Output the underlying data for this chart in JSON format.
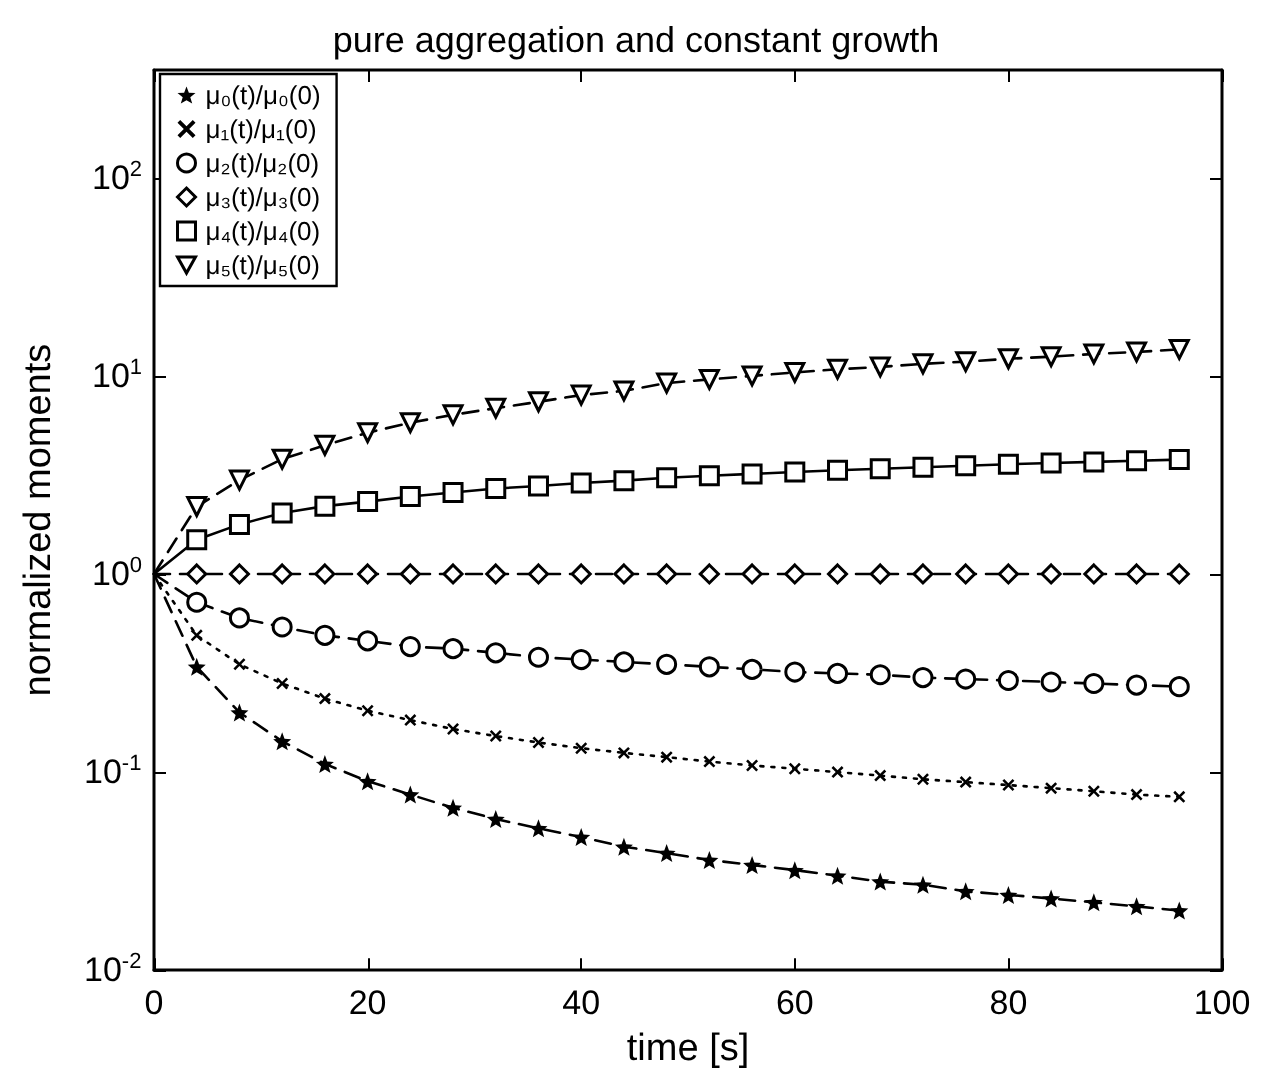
{
  "chart_data": {
    "type": "line",
    "title": "pure aggregation and constant growth",
    "xlabel": "time [s]",
    "ylabel": "normalized moments",
    "x": [
      0,
      4,
      8,
      12,
      16,
      20,
      24,
      28,
      32,
      36,
      40,
      44,
      48,
      52,
      56,
      60,
      64,
      68,
      72,
      76,
      80,
      84,
      88,
      92,
      96
    ],
    "series": [
      {
        "name": "μ₀(t)/μ₀(0)",
        "color": "#000000",
        "marker": "star",
        "line_style": "dashed",
        "values": [
          1,
          0.34,
          0.2,
          0.143,
          0.11,
          0.09,
          0.077,
          0.066,
          0.058,
          0.052,
          0.047,
          0.042,
          0.039,
          0.036,
          0.034,
          0.032,
          0.03,
          0.028,
          0.027,
          0.025,
          0.024,
          0.023,
          0.022,
          0.021,
          0.02
        ]
      },
      {
        "name": "μ₁(t)/μ₁(0)",
        "color": "#000000",
        "marker": "cross",
        "line_style": "dotted",
        "values": [
          1,
          0.49,
          0.35,
          0.28,
          0.235,
          0.204,
          0.183,
          0.165,
          0.152,
          0.141,
          0.132,
          0.125,
          0.119,
          0.113,
          0.108,
          0.104,
          0.1,
          0.096,
          0.092,
          0.089,
          0.086,
          0.083,
          0.08,
          0.077,
          0.075
        ]
      },
      {
        "name": "μ₂(t)/μ₂(0)",
        "color": "#000000",
        "marker": "circle",
        "line_style": "dashed",
        "values": [
          1,
          0.72,
          0.6,
          0.54,
          0.49,
          0.46,
          0.43,
          0.42,
          0.4,
          0.38,
          0.37,
          0.36,
          0.35,
          0.34,
          0.33,
          0.32,
          0.315,
          0.31,
          0.3,
          0.295,
          0.29,
          0.285,
          0.28,
          0.275,
          0.27
        ]
      },
      {
        "name": "μ₃(t)/μ₃(0)",
        "color": "#000000",
        "marker": "diamond",
        "line_style": "dashed",
        "values": [
          1,
          1,
          1,
          1,
          1,
          1,
          1,
          1,
          1,
          1,
          1,
          1,
          1,
          1,
          1,
          1,
          1,
          1,
          1,
          1,
          1,
          1,
          1,
          1,
          1
        ]
      },
      {
        "name": "μ₄(t)/μ₄(0)",
        "color": "#000000",
        "marker": "square",
        "line_style": "solid",
        "values": [
          1,
          1.49,
          1.78,
          2.03,
          2.2,
          2.32,
          2.46,
          2.58,
          2.7,
          2.78,
          2.88,
          2.96,
          3.06,
          3.13,
          3.2,
          3.27,
          3.34,
          3.4,
          3.46,
          3.52,
          3.58,
          3.63,
          3.68,
          3.73,
          3.78
        ]
      },
      {
        "name": "μ₅(t)/μ₅(0)",
        "color": "#000000",
        "marker": "triangle",
        "line_style": "dashed",
        "values": [
          1,
          2.19,
          2.98,
          3.8,
          4.46,
          5.17,
          5.8,
          6.36,
          6.87,
          7.4,
          8.0,
          8.4,
          9.2,
          9.6,
          10.0,
          10.4,
          10.8,
          11.1,
          11.5,
          11.8,
          12.2,
          12.5,
          12.9,
          13.2,
          13.6
        ]
      }
    ],
    "log": "y",
    "xlim": [
      0,
      100
    ],
    "xticks": [
      0,
      20,
      40,
      60,
      80,
      100
    ],
    "ylim": [
      0.01,
      350
    ],
    "yticks": [
      {
        "value": 0.01,
        "label": "10$^{-2}$"
      },
      {
        "value": 0.1,
        "label": "10$^{-1}$"
      },
      {
        "value": 1,
        "label": "10$^{0}$"
      },
      {
        "value": 10,
        "label": "10$^{1}$"
      },
      {
        "value": 100,
        "label": "10$^{2}$"
      }
    ],
    "grid": false,
    "legend": "top left"
  }
}
